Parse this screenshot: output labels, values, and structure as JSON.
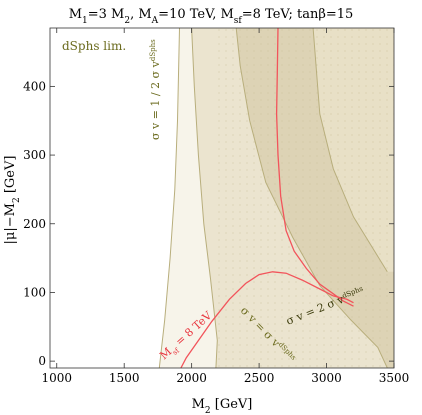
{
  "chart_data": {
    "type": "contour",
    "title": "M₁=3 M₂, M_A=10 TeV, M_sf=8 TeV; tanβ=15",
    "title_parts": {
      "p1": "M",
      "p1_sub": "1",
      "p2": "=3 M",
      "p2_sub": "2",
      "p3": ", M",
      "p3_sub": "A",
      "p4": "=10 TeV, M",
      "p4_sub": "sf",
      "p5": "=8 TeV; tanβ=15"
    },
    "xlabel": "M₂ [GeV]",
    "xlabel_parts": {
      "main": "M",
      "sub": "2",
      "unit": " [GeV]"
    },
    "ylabel": "|μ|−M₂ [GeV]",
    "ylabel_parts": {
      "main": "|μ|−M",
      "sub": "2",
      "unit": " [GeV]"
    },
    "xlim": [
      950,
      3500
    ],
    "ylim": [
      -10,
      485
    ],
    "xticks": [
      1000,
      1500,
      2000,
      2500,
      3000,
      3500
    ],
    "yticks": [
      0,
      100,
      200,
      300,
      400
    ],
    "legend_text": "dSphs lim.",
    "grid": false,
    "colors": {
      "region_outer": "#f7f4ea",
      "region_mid": "#ebe4cf",
      "region_inner": "#ddd3b5",
      "region_right": "#e8e0c6",
      "boundary": "#b8ae7c",
      "red_curve": "#f2545b",
      "annotation_olive": "#6b6b1e",
      "annotation_red": "#e8343d"
    },
    "contours": [
      {
        "name": "σ v = 1 / 2 σ v dSphs",
        "points": [
          [
            1760,
            -10
          ],
          [
            1800,
            60
          ],
          [
            1840,
            150
          ],
          [
            1875,
            250
          ],
          [
            1895,
            350
          ],
          [
            1910,
            485
          ]
        ]
      },
      {
        "name": "σ v = σ v dSphs",
        "points": [
          [
            2180,
            -10
          ],
          [
            2190,
            30
          ],
          [
            2140,
            120
          ],
          [
            2090,
            200
          ],
          [
            2050,
            300
          ],
          [
            2020,
            400
          ],
          [
            2000,
            485
          ]
        ]
      },
      {
        "name": "σ v = 2 σ v dSphs",
        "points": [
          [
            3450,
            -10
          ],
          [
            3380,
            20
          ],
          [
            3180,
            60
          ],
          [
            2950,
            110
          ],
          [
            2750,
            180
          ],
          [
            2550,
            260
          ],
          [
            2430,
            350
          ],
          [
            2360,
            430
          ],
          [
            2330,
            485
          ]
        ]
      },
      {
        "name": "",
        "points": [
          [
            3450,
            130
          ],
          [
            3200,
            210
          ],
          [
            3050,
            280
          ],
          [
            2950,
            360
          ],
          [
            2900,
            485
          ]
        ]
      }
    ],
    "red_curves": [
      {
        "name": "M_sf = 8 TeV",
        "points": [
          [
            1920,
            -10
          ],
          [
            1960,
            5
          ],
          [
            2050,
            30
          ],
          [
            2150,
            58
          ],
          [
            2280,
            90
          ],
          [
            2400,
            113
          ],
          [
            2500,
            126
          ],
          [
            2600,
            130
          ],
          [
            2700,
            128
          ],
          [
            2820,
            118
          ],
          [
            2950,
            105
          ],
          [
            3050,
            95
          ],
          [
            3150,
            90
          ],
          [
            3200,
            85
          ]
        ]
      },
      {
        "name": "",
        "points": [
          [
            2640,
            485
          ],
          [
            2635,
            420
          ],
          [
            2630,
            360
          ],
          [
            2640,
            300
          ],
          [
            2660,
            240
          ],
          [
            2700,
            190
          ],
          [
            2760,
            160
          ],
          [
            2850,
            135
          ],
          [
            2950,
            112
          ],
          [
            3050,
            98
          ],
          [
            3120,
            88
          ],
          [
            3200,
            80
          ]
        ]
      }
    ],
    "annotations": [
      {
        "id": "half",
        "parts": [
          "σ v = 1 / 2 σ v",
          "dSphs"
        ]
      },
      {
        "id": "equal",
        "parts": [
          "σ v = σ v",
          "dSphs"
        ]
      },
      {
        "id": "double",
        "parts": [
          "σ v = 2 σ v",
          "dSphs"
        ]
      },
      {
        "id": "msf",
        "parts": [
          "M",
          "sf",
          " = 8 TeV"
        ]
      }
    ]
  }
}
